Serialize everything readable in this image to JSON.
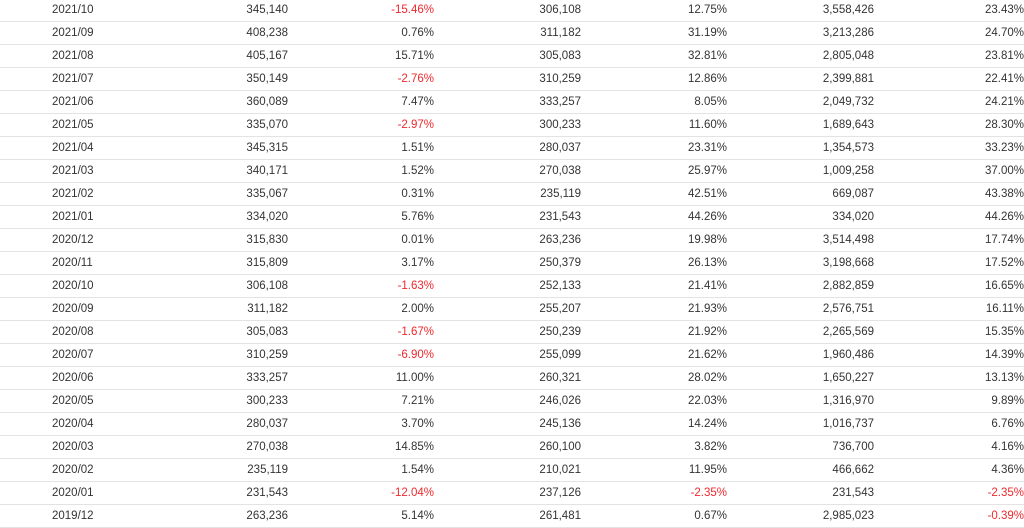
{
  "table": {
    "rows": [
      [
        "2021/10",
        "345,140",
        "-15.46%",
        "306,108",
        "12.75%",
        "3,558,426",
        "23.43%"
      ],
      [
        "2021/09",
        "408,238",
        "0.76%",
        "311,182",
        "31.19%",
        "3,213,286",
        "24.70%"
      ],
      [
        "2021/08",
        "405,167",
        "15.71%",
        "305,083",
        "32.81%",
        "2,805,048",
        "23.81%"
      ],
      [
        "2021/07",
        "350,149",
        "-2.76%",
        "310,259",
        "12.86%",
        "2,399,881",
        "22.41%"
      ],
      [
        "2021/06",
        "360,089",
        "7.47%",
        "333,257",
        "8.05%",
        "2,049,732",
        "24.21%"
      ],
      [
        "2021/05",
        "335,070",
        "-2.97%",
        "300,233",
        "11.60%",
        "1,689,643",
        "28.30%"
      ],
      [
        "2021/04",
        "345,315",
        "1.51%",
        "280,037",
        "23.31%",
        "1,354,573",
        "33.23%"
      ],
      [
        "2021/03",
        "340,171",
        "1.52%",
        "270,038",
        "25.97%",
        "1,009,258",
        "37.00%"
      ],
      [
        "2021/02",
        "335,067",
        "0.31%",
        "235,119",
        "42.51%",
        "669,087",
        "43.38%"
      ],
      [
        "2021/01",
        "334,020",
        "5.76%",
        "231,543",
        "44.26%",
        "334,020",
        "44.26%"
      ],
      [
        "2020/12",
        "315,830",
        "0.01%",
        "263,236",
        "19.98%",
        "3,514,498",
        "17.74%"
      ],
      [
        "2020/11",
        "315,809",
        "3.17%",
        "250,379",
        "26.13%",
        "3,198,668",
        "17.52%"
      ],
      [
        "2020/10",
        "306,108",
        "-1.63%",
        "252,133",
        "21.41%",
        "2,882,859",
        "16.65%"
      ],
      [
        "2020/09",
        "311,182",
        "2.00%",
        "255,207",
        "21.93%",
        "2,576,751",
        "16.11%"
      ],
      [
        "2020/08",
        "305,083",
        "-1.67%",
        "250,239",
        "21.92%",
        "2,265,569",
        "15.35%"
      ],
      [
        "2020/07",
        "310,259",
        "-6.90%",
        "255,099",
        "21.62%",
        "1,960,486",
        "14.39%"
      ],
      [
        "2020/06",
        "333,257",
        "11.00%",
        "260,321",
        "28.02%",
        "1,650,227",
        "13.13%"
      ],
      [
        "2020/05",
        "300,233",
        "7.21%",
        "246,026",
        "22.03%",
        "1,316,970",
        "9.89%"
      ],
      [
        "2020/04",
        "280,037",
        "3.70%",
        "245,136",
        "14.24%",
        "1,016,737",
        "6.76%"
      ],
      [
        "2020/03",
        "270,038",
        "14.85%",
        "260,100",
        "3.82%",
        "736,700",
        "4.16%"
      ],
      [
        "2020/02",
        "235,119",
        "1.54%",
        "210,021",
        "11.95%",
        "466,662",
        "4.36%"
      ],
      [
        "2020/01",
        "231,543",
        "-12.04%",
        "237,126",
        "-2.35%",
        "231,543",
        "-2.35%"
      ],
      [
        "2019/12",
        "263,236",
        "5.14%",
        "261,481",
        "0.67%",
        "2,985,023",
        "-0.39%"
      ]
    ],
    "negative_color": "#f0282d",
    "text_color": "#333333",
    "border_color": "#e3e3e3"
  }
}
